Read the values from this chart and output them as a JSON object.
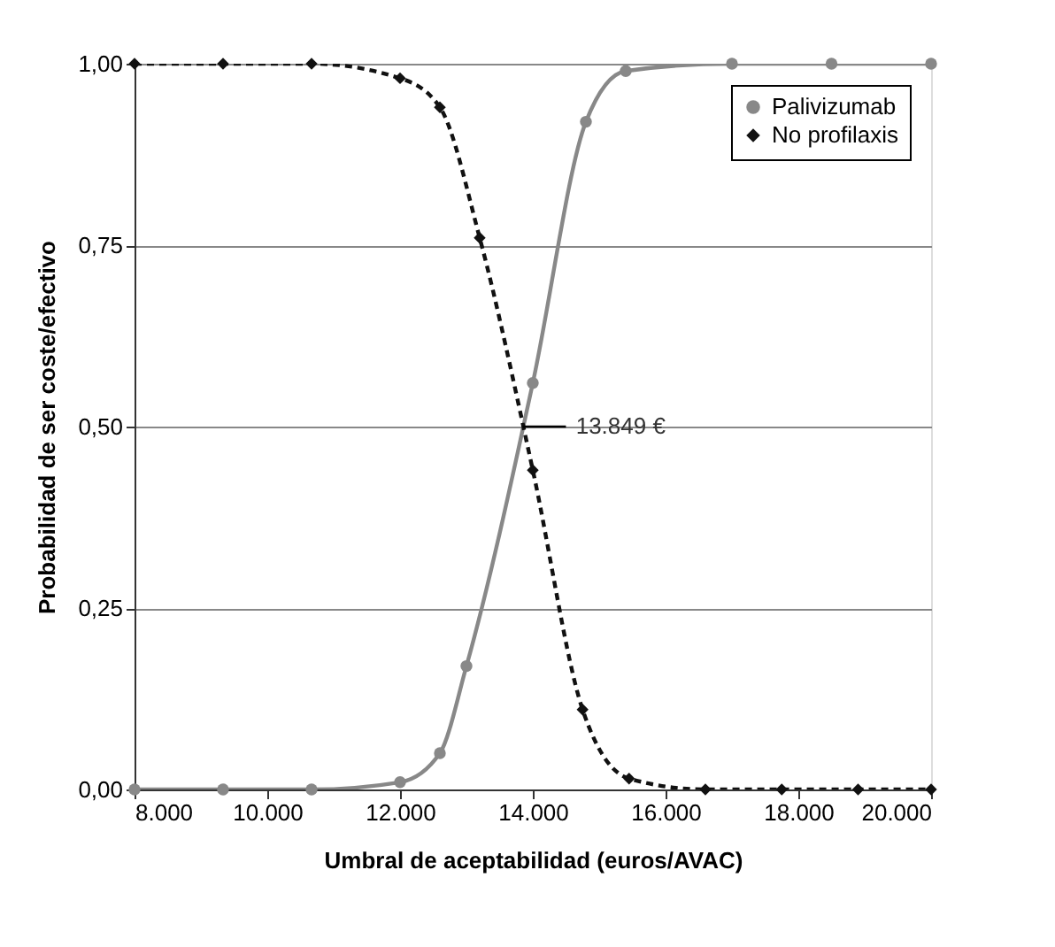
{
  "chart_data": {
    "type": "line",
    "xlabel": "Umbral de aceptabilidad (euros/AVAC)",
    "ylabel": "Probabilidad de ser coste/efectivo",
    "xlim": [
      8000,
      20000
    ],
    "ylim": [
      0,
      1
    ],
    "xticks": [
      {
        "value": 8000,
        "label": "8.000"
      },
      {
        "value": 10000,
        "label": "10.000"
      },
      {
        "value": 12000,
        "label": "12.000"
      },
      {
        "value": 14000,
        "label": "14.000"
      },
      {
        "value": 16000,
        "label": "16.000"
      },
      {
        "value": 18000,
        "label": "18.000"
      },
      {
        "value": 20000,
        "label": "20.000"
      }
    ],
    "yticks": [
      {
        "value": 0,
        "label": "0,00"
      },
      {
        "value": 0.25,
        "label": "0,25"
      },
      {
        "value": 0.5,
        "label": "0,50"
      },
      {
        "value": 0.75,
        "label": "0,75"
      },
      {
        "value": 1,
        "label": "1,00"
      }
    ],
    "grid": "y",
    "legend": "top right",
    "series": [
      {
        "name": "Palivizumab",
        "color": "#888888",
        "marker": "circle",
        "line_style": "solid",
        "x": [
          8000,
          9333,
          10667,
          12000,
          12600,
          13000,
          14000,
          14800,
          15400,
          17000,
          18500,
          20000
        ],
        "values": [
          0,
          0,
          0,
          0.01,
          0.05,
          0.17,
          0.56,
          0.92,
          0.99,
          1,
          1,
          1
        ]
      },
      {
        "name": "No profilaxis",
        "color": "#111111",
        "marker": "diamond",
        "line_style": "dashed",
        "x": [
          8000,
          9333,
          10667,
          12000,
          12600,
          13200,
          14000,
          14750,
          15450,
          16600,
          17750,
          18900,
          20000
        ],
        "values": [
          1,
          1,
          1,
          0.98,
          0.94,
          0.76,
          0.44,
          0.11,
          0.015,
          0,
          0,
          0,
          0
        ]
      }
    ],
    "annotations": [
      {
        "text": "13.849 €",
        "x": 13849,
        "y": 0.5
      }
    ]
  }
}
